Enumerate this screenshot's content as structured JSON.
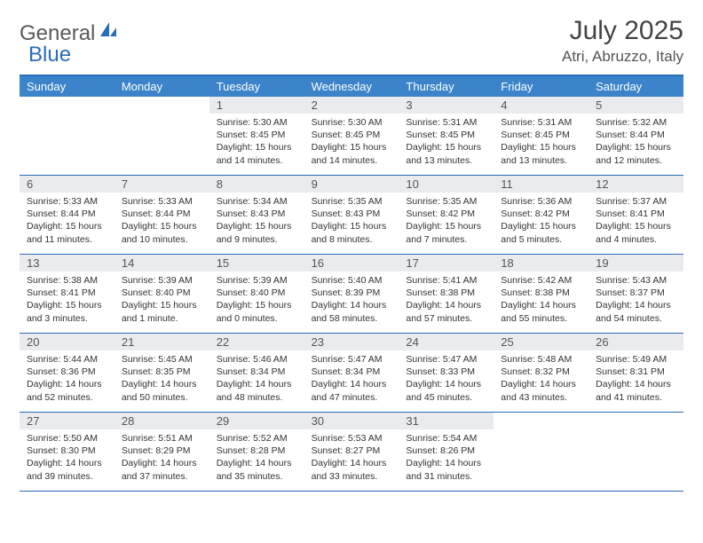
{
  "logo": {
    "text1": "General",
    "text2": "Blue",
    "icon_color": "#2a6db8"
  },
  "title": "July 2025",
  "location": "Atri, Abruzzo, Italy",
  "colors": {
    "header_bg": "#3b84c9",
    "border": "#2a6db8",
    "daynum_bg": "#e9ebee",
    "text": "#333333"
  },
  "dow": [
    "Sunday",
    "Monday",
    "Tuesday",
    "Wednesday",
    "Thursday",
    "Friday",
    "Saturday"
  ],
  "weeks": [
    [
      {
        "n": "",
        "sunrise": "",
        "sunset": "",
        "daylight": "",
        "empty": true
      },
      {
        "n": "",
        "sunrise": "",
        "sunset": "",
        "daylight": "",
        "empty": true
      },
      {
        "n": "1",
        "sunrise": "Sunrise: 5:30 AM",
        "sunset": "Sunset: 8:45 PM",
        "daylight": "Daylight: 15 hours and 14 minutes."
      },
      {
        "n": "2",
        "sunrise": "Sunrise: 5:30 AM",
        "sunset": "Sunset: 8:45 PM",
        "daylight": "Daylight: 15 hours and 14 minutes."
      },
      {
        "n": "3",
        "sunrise": "Sunrise: 5:31 AM",
        "sunset": "Sunset: 8:45 PM",
        "daylight": "Daylight: 15 hours and 13 minutes."
      },
      {
        "n": "4",
        "sunrise": "Sunrise: 5:31 AM",
        "sunset": "Sunset: 8:45 PM",
        "daylight": "Daylight: 15 hours and 13 minutes."
      },
      {
        "n": "5",
        "sunrise": "Sunrise: 5:32 AM",
        "sunset": "Sunset: 8:44 PM",
        "daylight": "Daylight: 15 hours and 12 minutes."
      }
    ],
    [
      {
        "n": "6",
        "sunrise": "Sunrise: 5:33 AM",
        "sunset": "Sunset: 8:44 PM",
        "daylight": "Daylight: 15 hours and 11 minutes."
      },
      {
        "n": "7",
        "sunrise": "Sunrise: 5:33 AM",
        "sunset": "Sunset: 8:44 PM",
        "daylight": "Daylight: 15 hours and 10 minutes."
      },
      {
        "n": "8",
        "sunrise": "Sunrise: 5:34 AM",
        "sunset": "Sunset: 8:43 PM",
        "daylight": "Daylight: 15 hours and 9 minutes."
      },
      {
        "n": "9",
        "sunrise": "Sunrise: 5:35 AM",
        "sunset": "Sunset: 8:43 PM",
        "daylight": "Daylight: 15 hours and 8 minutes."
      },
      {
        "n": "10",
        "sunrise": "Sunrise: 5:35 AM",
        "sunset": "Sunset: 8:42 PM",
        "daylight": "Daylight: 15 hours and 7 minutes."
      },
      {
        "n": "11",
        "sunrise": "Sunrise: 5:36 AM",
        "sunset": "Sunset: 8:42 PM",
        "daylight": "Daylight: 15 hours and 5 minutes."
      },
      {
        "n": "12",
        "sunrise": "Sunrise: 5:37 AM",
        "sunset": "Sunset: 8:41 PM",
        "daylight": "Daylight: 15 hours and 4 minutes."
      }
    ],
    [
      {
        "n": "13",
        "sunrise": "Sunrise: 5:38 AM",
        "sunset": "Sunset: 8:41 PM",
        "daylight": "Daylight: 15 hours and 3 minutes."
      },
      {
        "n": "14",
        "sunrise": "Sunrise: 5:39 AM",
        "sunset": "Sunset: 8:40 PM",
        "daylight": "Daylight: 15 hours and 1 minute."
      },
      {
        "n": "15",
        "sunrise": "Sunrise: 5:39 AM",
        "sunset": "Sunset: 8:40 PM",
        "daylight": "Daylight: 15 hours and 0 minutes."
      },
      {
        "n": "16",
        "sunrise": "Sunrise: 5:40 AM",
        "sunset": "Sunset: 8:39 PM",
        "daylight": "Daylight: 14 hours and 58 minutes."
      },
      {
        "n": "17",
        "sunrise": "Sunrise: 5:41 AM",
        "sunset": "Sunset: 8:38 PM",
        "daylight": "Daylight: 14 hours and 57 minutes."
      },
      {
        "n": "18",
        "sunrise": "Sunrise: 5:42 AM",
        "sunset": "Sunset: 8:38 PM",
        "daylight": "Daylight: 14 hours and 55 minutes."
      },
      {
        "n": "19",
        "sunrise": "Sunrise: 5:43 AM",
        "sunset": "Sunset: 8:37 PM",
        "daylight": "Daylight: 14 hours and 54 minutes."
      }
    ],
    [
      {
        "n": "20",
        "sunrise": "Sunrise: 5:44 AM",
        "sunset": "Sunset: 8:36 PM",
        "daylight": "Daylight: 14 hours and 52 minutes."
      },
      {
        "n": "21",
        "sunrise": "Sunrise: 5:45 AM",
        "sunset": "Sunset: 8:35 PM",
        "daylight": "Daylight: 14 hours and 50 minutes."
      },
      {
        "n": "22",
        "sunrise": "Sunrise: 5:46 AM",
        "sunset": "Sunset: 8:34 PM",
        "daylight": "Daylight: 14 hours and 48 minutes."
      },
      {
        "n": "23",
        "sunrise": "Sunrise: 5:47 AM",
        "sunset": "Sunset: 8:34 PM",
        "daylight": "Daylight: 14 hours and 47 minutes."
      },
      {
        "n": "24",
        "sunrise": "Sunrise: 5:47 AM",
        "sunset": "Sunset: 8:33 PM",
        "daylight": "Daylight: 14 hours and 45 minutes."
      },
      {
        "n": "25",
        "sunrise": "Sunrise: 5:48 AM",
        "sunset": "Sunset: 8:32 PM",
        "daylight": "Daylight: 14 hours and 43 minutes."
      },
      {
        "n": "26",
        "sunrise": "Sunrise: 5:49 AM",
        "sunset": "Sunset: 8:31 PM",
        "daylight": "Daylight: 14 hours and 41 minutes."
      }
    ],
    [
      {
        "n": "27",
        "sunrise": "Sunrise: 5:50 AM",
        "sunset": "Sunset: 8:30 PM",
        "daylight": "Daylight: 14 hours and 39 minutes."
      },
      {
        "n": "28",
        "sunrise": "Sunrise: 5:51 AM",
        "sunset": "Sunset: 8:29 PM",
        "daylight": "Daylight: 14 hours and 37 minutes."
      },
      {
        "n": "29",
        "sunrise": "Sunrise: 5:52 AM",
        "sunset": "Sunset: 8:28 PM",
        "daylight": "Daylight: 14 hours and 35 minutes."
      },
      {
        "n": "30",
        "sunrise": "Sunrise: 5:53 AM",
        "sunset": "Sunset: 8:27 PM",
        "daylight": "Daylight: 14 hours and 33 minutes."
      },
      {
        "n": "31",
        "sunrise": "Sunrise: 5:54 AM",
        "sunset": "Sunset: 8:26 PM",
        "daylight": "Daylight: 14 hours and 31 minutes."
      },
      {
        "n": "",
        "sunrise": "",
        "sunset": "",
        "daylight": "",
        "empty": true
      },
      {
        "n": "",
        "sunrise": "",
        "sunset": "",
        "daylight": "",
        "empty": true
      }
    ]
  ]
}
